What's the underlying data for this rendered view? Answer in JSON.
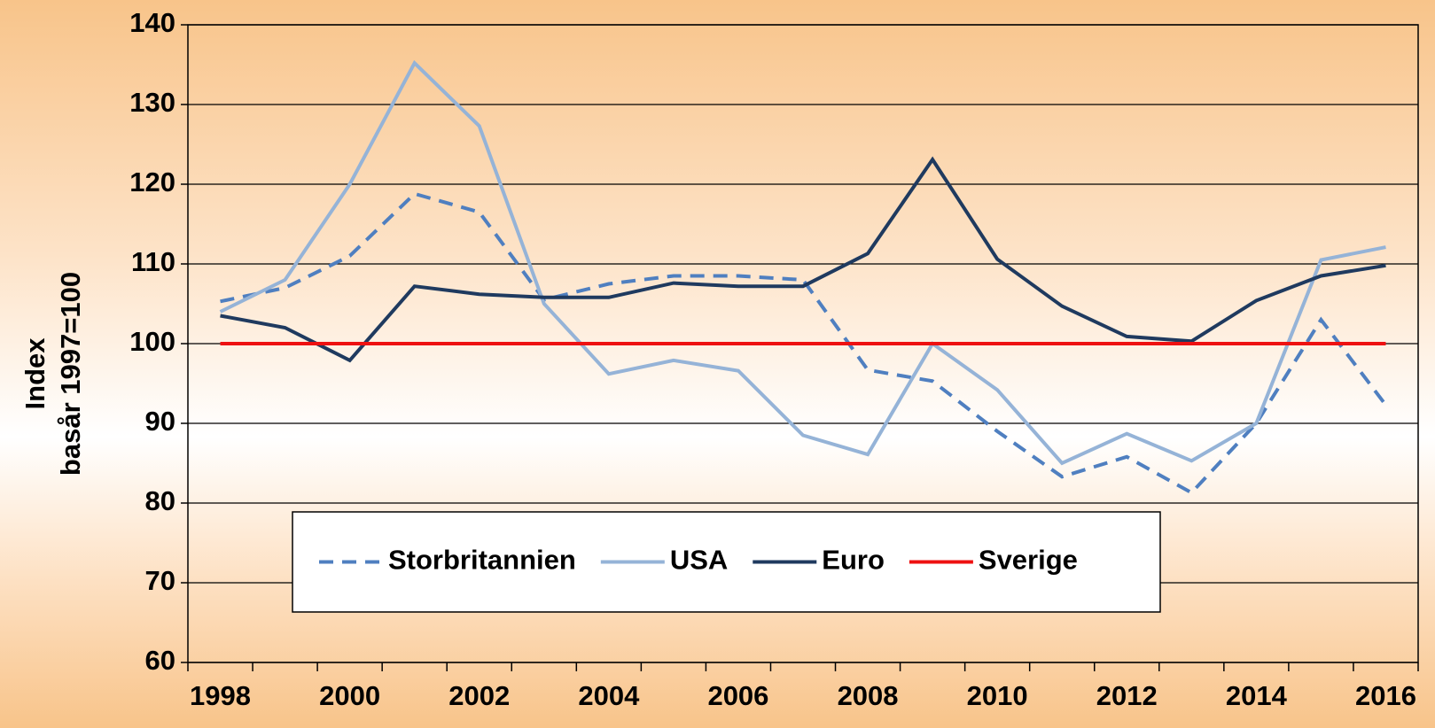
{
  "chart_data": {
    "type": "line",
    "y_label": [
      "Index",
      "basår 1997=100"
    ],
    "categories": [
      "1998",
      null,
      "2000",
      null,
      "2002",
      null,
      "2004",
      null,
      "2006",
      null,
      "2008",
      null,
      "2010",
      null,
      "2012",
      null,
      "2014",
      null,
      "2016"
    ],
    "series": [
      {
        "name": "Storbritannien",
        "color": "#4f7fc0",
        "dashed": true,
        "values": [
          105.3,
          107,
          111,
          118.8,
          116.5,
          105.5,
          107.5,
          108.5,
          108.5,
          108,
          96.7,
          95.3,
          89,
          83.3,
          85.8,
          81.3,
          90,
          103,
          92.3
        ]
      },
      {
        "name": "USA",
        "color": "#95b3d7",
        "values": [
          104,
          108,
          120,
          135.2,
          127.3,
          105,
          96.2,
          97.9,
          96.6,
          88.5,
          86.1,
          100,
          94.2,
          85,
          88.7,
          85.3,
          90,
          110.5,
          112.1
        ]
      },
      {
        "name": "Euro",
        "color": "#1f3a5f",
        "values": [
          103.5,
          102,
          97.9,
          107.2,
          106.2,
          105.8,
          105.8,
          107.6,
          107.2,
          107.2,
          111.3,
          123.1,
          110.6,
          104.7,
          100.9,
          100.3,
          105.4,
          108.5,
          109.8
        ]
      },
      {
        "name": "Sverige",
        "color": "#ee1111",
        "values": [
          100,
          100,
          100,
          100,
          100,
          100,
          100,
          100,
          100,
          100,
          100,
          100,
          100,
          100,
          100,
          100,
          100,
          100,
          100
        ]
      }
    ],
    "ylim": [
      60,
      140
    ],
    "yticks": [
      60,
      70,
      80,
      90,
      100,
      110,
      120,
      130,
      140
    ],
    "grid": true,
    "legend": "bottom-left"
  }
}
